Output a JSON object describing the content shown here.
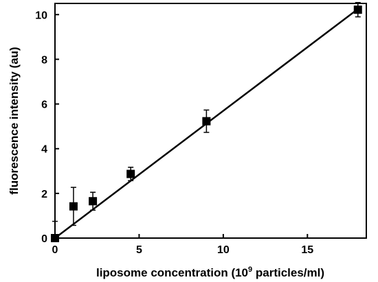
{
  "chart_data": {
    "type": "scatter",
    "title": "",
    "xlabel": "liposome concentration (10",
    "xlabel_sup": "9",
    "xlabel_suffix": " particles/ml)",
    "ylabel": "fluorescence intensity (au)",
    "xlim": [
      0,
      18.5
    ],
    "ylim": [
      0,
      10.5
    ],
    "xticks": [
      0,
      5,
      10,
      15
    ],
    "yticks": [
      0,
      2,
      4,
      6,
      8,
      10
    ],
    "grid": false,
    "legend": "none",
    "marker": "square",
    "color": "#000000",
    "points": [
      {
        "x": 0.0,
        "y": 0.0,
        "err": 0.75
      },
      {
        "x": 1.1,
        "y": 1.42,
        "err": 0.85
      },
      {
        "x": 2.25,
        "y": 1.65,
        "err": 0.4
      },
      {
        "x": 4.5,
        "y": 2.87,
        "err": 0.3
      },
      {
        "x": 9.0,
        "y": 5.23,
        "err": 0.5
      },
      {
        "x": 18.0,
        "y": 10.22,
        "err": 0.32
      }
    ],
    "fit_line": {
      "x": [
        0,
        18
      ],
      "y": [
        0.0,
        10.25
      ]
    }
  }
}
